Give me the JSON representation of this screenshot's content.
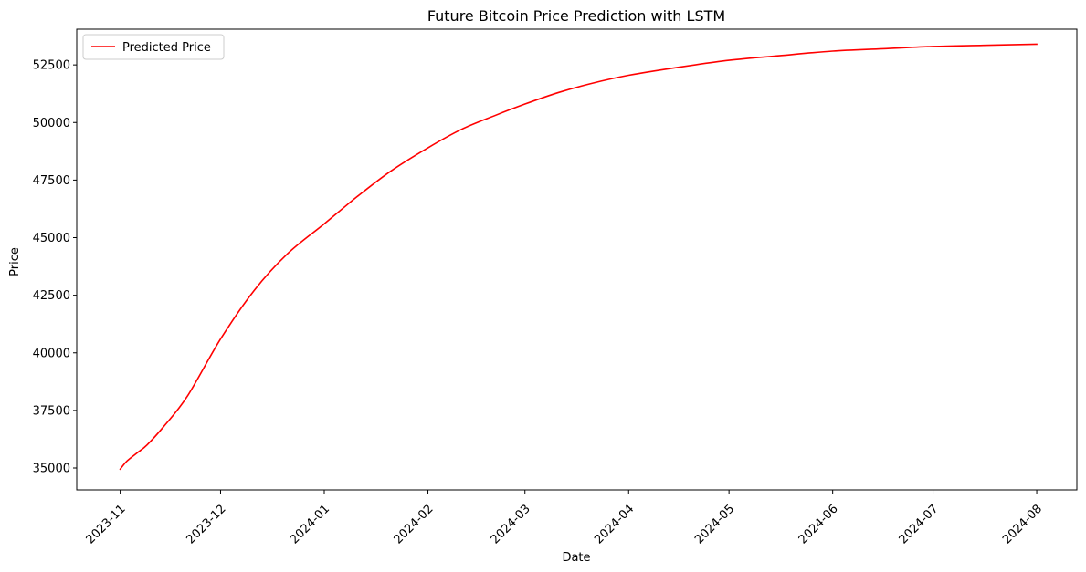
{
  "chart_data": {
    "type": "line",
    "title": "Future Bitcoin Price Prediction with LSTM",
    "xlabel": "Date",
    "ylabel": "Price",
    "ylim": [
      34050,
      54050
    ],
    "xlim": [
      "2023-10-19",
      "2024-08-13"
    ],
    "grid": false,
    "legend_position": "upper-left",
    "x_ticks": [
      "2023-11",
      "2023-12",
      "2024-01",
      "2024-02",
      "2024-03",
      "2024-04",
      "2024-05",
      "2024-06",
      "2024-07",
      "2024-08"
    ],
    "y_ticks": [
      "35000",
      "37500",
      "40000",
      "42500",
      "45000",
      "47500",
      "50000",
      "52500"
    ],
    "series": [
      {
        "name": "Predicted Price",
        "color": "#ff0000",
        "x": [
          "2023-11-01",
          "2023-11-03",
          "2023-11-06",
          "2023-11-09",
          "2023-11-14",
          "2023-11-21",
          "2023-12-01",
          "2023-12-11",
          "2023-12-21",
          "2024-01-01",
          "2024-01-11",
          "2024-01-21",
          "2024-02-01",
          "2024-02-11",
          "2024-02-21",
          "2024-03-01",
          "2024-03-11",
          "2024-03-21",
          "2024-04-01",
          "2024-04-16",
          "2024-05-01",
          "2024-05-16",
          "2024-06-01",
          "2024-06-16",
          "2024-07-01",
          "2024-07-16",
          "2024-08-01"
        ],
        "values": [
          34950,
          35300,
          35650,
          36000,
          36800,
          38100,
          40600,
          42700,
          44300,
          45600,
          46800,
          47900,
          48900,
          49700,
          50300,
          50800,
          51300,
          51700,
          52050,
          52400,
          52700,
          52900,
          53100,
          53200,
          53300,
          53350,
          53400
        ]
      }
    ]
  }
}
